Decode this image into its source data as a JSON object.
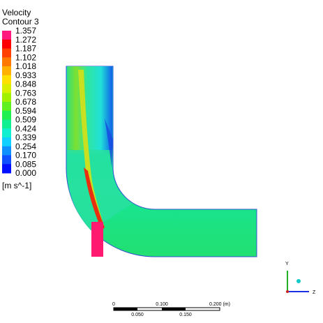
{
  "legend": {
    "title": "Velocity",
    "subtitle": "Contour 3",
    "levels": [
      "1.357",
      "1.272",
      "1.187",
      "1.102",
      "1.018",
      "0.933",
      "0.848",
      "0.763",
      "0.678",
      "0.594",
      "0.509",
      "0.424",
      "0.339",
      "0.254",
      "0.170",
      "0.085",
      "0.000"
    ],
    "unit": "[m s^-1]"
  },
  "scale_bar": {
    "labels_top": [
      "0",
      "0.100",
      "0.200 (m)"
    ],
    "labels_bottom": [
      "0.050",
      "0.150"
    ]
  },
  "axes": {
    "y": "Y",
    "z": "Z"
  }
}
